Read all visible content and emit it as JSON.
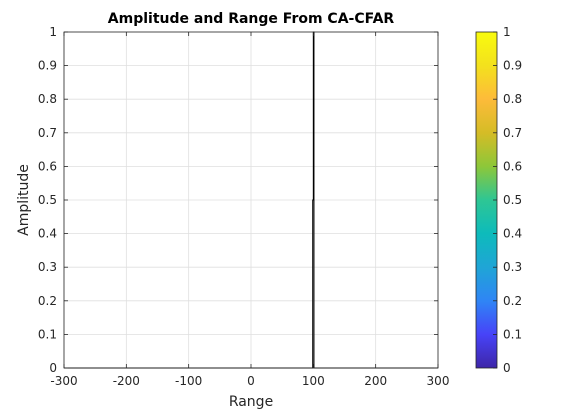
{
  "chart_data": {
    "type": "line",
    "title": "Amplitude and Range From CA-CFAR",
    "xlabel": "Range",
    "ylabel": "Amplitude",
    "xlim": [
      -300,
      300
    ],
    "ylim": [
      0,
      1
    ],
    "xticks": [
      "-300",
      "-200",
      "-100",
      "0",
      "100",
      "200",
      "300"
    ],
    "yticks": [
      "0",
      "0.1",
      "0.2",
      "0.3",
      "0.4",
      "0.5",
      "0.6",
      "0.7",
      "0.8",
      "0.9",
      "1"
    ],
    "grid": true,
    "series": [
      {
        "x": [
          -300,
          99,
          99,
          100,
          100,
          101,
          101,
          300
        ],
        "y": [
          0,
          0,
          0.5,
          0.5,
          1,
          1,
          0,
          0
        ],
        "color": "#000000"
      }
    ],
    "colorbar": {
      "range": [
        0,
        1
      ],
      "ticks": [
        "0",
        "0.1",
        "0.2",
        "0.3",
        "0.4",
        "0.5",
        "0.6",
        "0.7",
        "0.8",
        "0.9",
        "1"
      ],
      "colormap": [
        "#3e26a8",
        "#4743f8",
        "#2f85f5",
        "#1fa5d6",
        "#0dbbbb",
        "#2ec694",
        "#8dc739",
        "#d5bc26",
        "#fdbb3a",
        "#f3e11d",
        "#f9fb0e"
      ]
    }
  }
}
